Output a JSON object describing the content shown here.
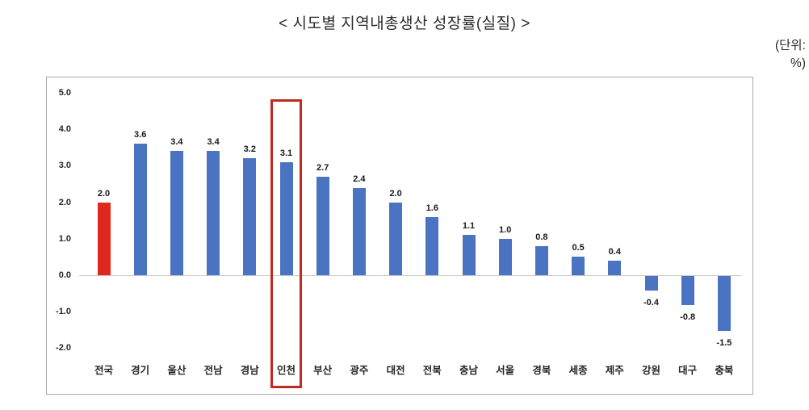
{
  "page": {
    "title": "< 시도별 지역내총생산 성장률(실질) >",
    "unit_line1": "(단위:",
    "unit_line2": "%)"
  },
  "chart_data": {
    "type": "bar",
    "title": "시도별 지역내총생산 성장률(실질)",
    "unit": "%",
    "categories": [
      "전국",
      "경기",
      "울산",
      "전남",
      "경남",
      "인천",
      "부산",
      "광주",
      "대전",
      "전북",
      "충남",
      "서울",
      "경북",
      "세종",
      "제주",
      "강원",
      "대구",
      "충북"
    ],
    "values": [
      2.0,
      3.6,
      3.4,
      3.4,
      3.2,
      3.1,
      2.7,
      2.4,
      2.0,
      1.6,
      1.1,
      1.0,
      0.8,
      0.5,
      0.4,
      -0.4,
      -0.8,
      -1.5
    ],
    "value_labels": [
      "2.0",
      "3.6",
      "3.4",
      "3.4",
      "3.2",
      "3.1",
      "2.7",
      "2.4",
      "2.0",
      "1.6",
      "1.1",
      "1.0",
      "0.8",
      "0.5",
      "0.4",
      "-0.4",
      "-0.8",
      "-1.5"
    ],
    "y_ticks": [
      "5.0",
      "4.0",
      "3.0",
      "2.0",
      "1.0",
      "0.0",
      "-1.0",
      "-2.0"
    ],
    "y_tick_values": [
      5,
      4,
      3,
      2,
      1,
      0,
      -1,
      -2
    ],
    "ylim": [
      -2.0,
      5.0
    ],
    "grid": false,
    "legend": null,
    "highlighted_category": "인천",
    "highlight_index": 5,
    "colors": {
      "bar_default": "#4a73c2",
      "bar_national": "#e0281c",
      "highlight_box": "#c02b20",
      "axis_line": "#c8c8c8",
      "chart_border": "#a9a9a9",
      "text": "#1a1a1a"
    }
  }
}
